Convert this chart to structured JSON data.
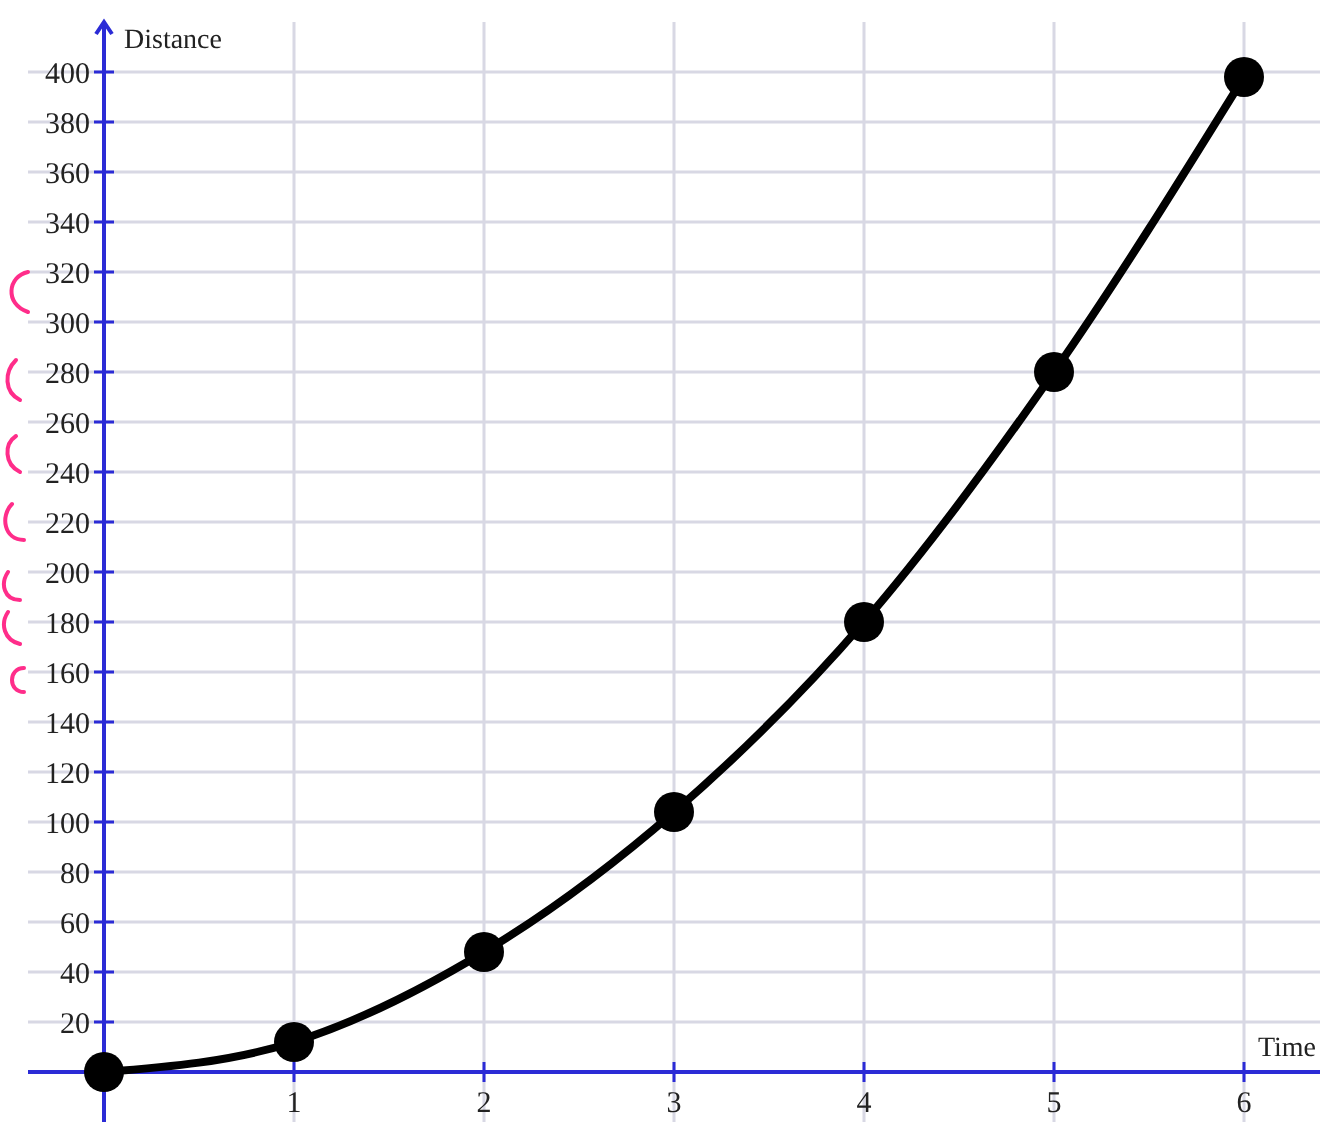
{
  "chart_data": {
    "type": "line",
    "xlabel": "Time",
    "ylabel": "Distance",
    "x": [
      0,
      1,
      2,
      3,
      4,
      5,
      6
    ],
    "series": [
      {
        "color": "#000000",
        "values": [
          0,
          12,
          48,
          104,
          180,
          280,
          398
        ]
      }
    ],
    "xlim": [
      -0.4,
      6.4
    ],
    "ylim": [
      -20,
      420
    ],
    "xticks": [
      1,
      2,
      3,
      4,
      5,
      6
    ],
    "yticks": [
      20,
      40,
      60,
      80,
      100,
      120,
      140,
      160,
      180,
      200,
      220,
      240,
      260,
      280,
      300,
      320,
      340,
      360,
      380,
      400
    ],
    "ref_lines": [
      {
        "axis": "y",
        "value": 0,
        "color": "#2b2bd6"
      }
    ],
    "grid": true,
    "marker": "circle",
    "line_style": "solid"
  }
}
